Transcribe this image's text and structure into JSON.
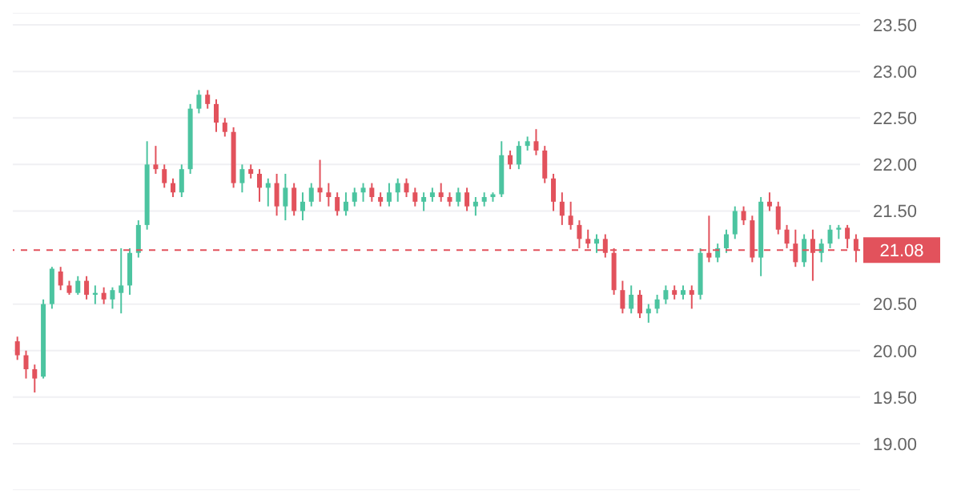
{
  "chart_data": {
    "type": "candlestick",
    "categories": [
      null,
      null,
      null,
      null,
      null,
      null,
      null,
      null,
      null,
      null,
      null,
      null,
      null,
      null,
      null,
      null,
      null,
      null,
      null,
      null,
      null,
      null,
      null,
      null,
      null,
      null,
      null,
      null,
      null,
      null,
      null,
      null,
      null,
      null,
      null,
      null,
      null,
      null,
      null,
      null,
      null,
      null,
      null,
      null,
      null,
      null,
      null,
      null,
      null,
      null,
      null,
      null,
      null,
      null,
      null,
      null,
      null,
      null,
      null,
      null,
      null,
      null,
      null,
      null,
      null,
      null,
      null,
      null,
      null,
      null,
      null,
      null,
      null,
      null,
      null,
      null,
      null,
      null,
      null,
      null,
      null,
      null,
      null,
      null,
      null,
      null,
      null,
      null,
      null,
      null,
      null,
      null,
      null,
      null,
      null,
      null,
      null,
      null
    ],
    "ohlc": [
      [
        20.1,
        20.15,
        19.9,
        19.95
      ],
      [
        19.95,
        20.0,
        19.7,
        19.8
      ],
      [
        19.8,
        19.85,
        19.55,
        19.7
      ],
      [
        19.72,
        20.55,
        19.7,
        20.5
      ],
      [
        20.5,
        20.9,
        20.45,
        20.88
      ],
      [
        20.85,
        20.9,
        20.65,
        20.7
      ],
      [
        20.7,
        20.75,
        20.6,
        20.62
      ],
      [
        20.62,
        20.8,
        20.6,
        20.75
      ],
      [
        20.75,
        20.8,
        20.55,
        20.6
      ],
      [
        20.6,
        20.7,
        20.5,
        20.62
      ],
      [
        20.62,
        20.68,
        20.5,
        20.55
      ],
      [
        20.55,
        20.68,
        20.45,
        20.65
      ],
      [
        20.62,
        21.1,
        20.4,
        20.7
      ],
      [
        20.7,
        21.1,
        20.6,
        21.05
      ],
      [
        21.05,
        21.4,
        21.0,
        21.35
      ],
      [
        21.35,
        22.25,
        21.3,
        22.0
      ],
      [
        22.0,
        22.2,
        21.9,
        21.95
      ],
      [
        21.95,
        22.0,
        21.75,
        21.8
      ],
      [
        21.8,
        21.85,
        21.65,
        21.7
      ],
      [
        21.7,
        22.0,
        21.65,
        21.95
      ],
      [
        21.95,
        22.65,
        21.9,
        22.6
      ],
      [
        22.6,
        22.8,
        22.55,
        22.75
      ],
      [
        22.75,
        22.8,
        22.6,
        22.65
      ],
      [
        22.65,
        22.7,
        22.35,
        22.45
      ],
      [
        22.45,
        22.5,
        22.3,
        22.35
      ],
      [
        22.35,
        22.4,
        21.75,
        21.8
      ],
      [
        21.8,
        22.0,
        21.7,
        21.95
      ],
      [
        21.95,
        22.0,
        21.85,
        21.9
      ],
      [
        21.9,
        21.95,
        21.6,
        21.75
      ],
      [
        21.75,
        21.85,
        21.55,
        21.8
      ],
      [
        21.8,
        21.9,
        21.45,
        21.55
      ],
      [
        21.55,
        21.9,
        21.4,
        21.75
      ],
      [
        21.75,
        21.8,
        21.45,
        21.5
      ],
      [
        21.5,
        21.7,
        21.4,
        21.6
      ],
      [
        21.6,
        21.8,
        21.55,
        21.75
      ],
      [
        21.75,
        22.05,
        21.6,
        21.7
      ],
      [
        21.7,
        21.8,
        21.55,
        21.65
      ],
      [
        21.65,
        21.7,
        21.45,
        21.5
      ],
      [
        21.5,
        21.7,
        21.45,
        21.6
      ],
      [
        21.6,
        21.75,
        21.55,
        21.7
      ],
      [
        21.7,
        21.8,
        21.6,
        21.75
      ],
      [
        21.75,
        21.8,
        21.6,
        21.65
      ],
      [
        21.65,
        21.7,
        21.55,
        21.6
      ],
      [
        21.6,
        21.8,
        21.55,
        21.7
      ],
      [
        21.7,
        21.85,
        21.6,
        21.8
      ],
      [
        21.8,
        21.85,
        21.65,
        21.7
      ],
      [
        21.7,
        21.75,
        21.55,
        21.6
      ],
      [
        21.6,
        21.7,
        21.5,
        21.65
      ],
      [
        21.65,
        21.75,
        21.6,
        21.7
      ],
      [
        21.7,
        21.8,
        21.6,
        21.65
      ],
      [
        21.65,
        21.7,
        21.55,
        21.6
      ],
      [
        21.6,
        21.75,
        21.55,
        21.7
      ],
      [
        21.7,
        21.75,
        21.5,
        21.55
      ],
      [
        21.55,
        21.65,
        21.45,
        21.6
      ],
      [
        21.6,
        21.7,
        21.55,
        21.65
      ],
      [
        21.65,
        21.7,
        21.6,
        21.68
      ],
      [
        21.68,
        22.25,
        21.65,
        22.1
      ],
      [
        22.1,
        22.15,
        21.95,
        22.0
      ],
      [
        22.0,
        22.25,
        21.95,
        22.2
      ],
      [
        22.2,
        22.3,
        22.15,
        22.25
      ],
      [
        22.25,
        22.38,
        22.1,
        22.15
      ],
      [
        22.15,
        22.2,
        21.8,
        21.85
      ],
      [
        21.85,
        21.9,
        21.5,
        21.6
      ],
      [
        21.6,
        21.7,
        21.35,
        21.45
      ],
      [
        21.45,
        21.6,
        21.3,
        21.35
      ],
      [
        21.35,
        21.4,
        21.1,
        21.2
      ],
      [
        21.2,
        21.3,
        21.1,
        21.15
      ],
      [
        21.15,
        21.25,
        21.05,
        21.2
      ],
      [
        21.2,
        21.25,
        21.0,
        21.05
      ],
      [
        21.05,
        21.1,
        20.6,
        20.65
      ],
      [
        20.65,
        20.75,
        20.4,
        20.45
      ],
      [
        20.45,
        20.7,
        20.4,
        20.6
      ],
      [
        20.6,
        20.65,
        20.35,
        20.4
      ],
      [
        20.4,
        20.5,
        20.3,
        20.45
      ],
      [
        20.45,
        20.6,
        20.4,
        20.55
      ],
      [
        20.55,
        20.7,
        20.5,
        20.65
      ],
      [
        20.65,
        20.7,
        20.55,
        20.6
      ],
      [
        20.6,
        20.7,
        20.55,
        20.65
      ],
      [
        20.65,
        20.7,
        20.45,
        20.6
      ],
      [
        20.6,
        21.1,
        20.55,
        21.05
      ],
      [
        21.05,
        21.45,
        20.95,
        21.0
      ],
      [
        21.0,
        21.15,
        20.95,
        21.1
      ],
      [
        21.1,
        21.3,
        21.05,
        21.25
      ],
      [
        21.25,
        21.55,
        21.2,
        21.5
      ],
      [
        21.5,
        21.55,
        21.35,
        21.4
      ],
      [
        21.4,
        21.45,
        20.95,
        21.0
      ],
      [
        21.0,
        21.65,
        20.8,
        21.6
      ],
      [
        21.6,
        21.7,
        21.5,
        21.55
      ],
      [
        21.55,
        21.6,
        21.25,
        21.3
      ],
      [
        21.3,
        21.35,
        21.1,
        21.15
      ],
      [
        21.15,
        21.3,
        20.9,
        20.95
      ],
      [
        20.95,
        21.25,
        20.9,
        21.2
      ],
      [
        21.2,
        21.3,
        20.75,
        21.05
      ],
      [
        21.05,
        21.2,
        20.95,
        21.15
      ],
      [
        21.15,
        21.35,
        21.1,
        21.3
      ],
      [
        21.3,
        21.35,
        21.2,
        21.32
      ],
      [
        21.32,
        21.35,
        21.1,
        21.2
      ],
      [
        21.2,
        21.25,
        20.95,
        21.08
      ]
    ],
    "colors": [
      "#e2525c",
      "#e2525c",
      "#e2525c",
      "#4cc4a0",
      "#4cc4a0",
      "#e2525c",
      "#e2525c",
      "#4cc4a0",
      "#e2525c",
      "#4cc4a0",
      "#e2525c",
      "#4cc4a0",
      "#4cc4a0",
      "#4cc4a0",
      "#4cc4a0",
      "#4cc4a0",
      "#e2525c",
      "#e2525c",
      "#e2525c",
      "#4cc4a0",
      "#4cc4a0",
      "#4cc4a0",
      "#e2525c",
      "#e2525c",
      "#e2525c",
      "#e2525c",
      "#4cc4a0",
      "#e2525c",
      "#e2525c",
      "#4cc4a0",
      "#e2525c",
      "#4cc4a0",
      "#e2525c",
      "#4cc4a0",
      "#4cc4a0",
      "#e2525c",
      "#e2525c",
      "#e2525c",
      "#4cc4a0",
      "#4cc4a0",
      "#4cc4a0",
      "#e2525c",
      "#e2525c",
      "#4cc4a0",
      "#4cc4a0",
      "#e2525c",
      "#e2525c",
      "#4cc4a0",
      "#4cc4a0",
      "#e2525c",
      "#e2525c",
      "#4cc4a0",
      "#e2525c",
      "#4cc4a0",
      "#4cc4a0",
      "#4cc4a0",
      "#4cc4a0",
      "#e2525c",
      "#4cc4a0",
      "#4cc4a0",
      "#e2525c",
      "#e2525c",
      "#e2525c",
      "#e2525c",
      "#e2525c",
      "#e2525c",
      "#e2525c",
      "#4cc4a0",
      "#e2525c",
      "#e2525c",
      "#e2525c",
      "#4cc4a0",
      "#e2525c",
      "#4cc4a0",
      "#4cc4a0",
      "#4cc4a0",
      "#e2525c",
      "#4cc4a0",
      "#e2525c",
      "#4cc4a0",
      "#e2525c",
      "#4cc4a0",
      "#4cc4a0",
      "#4cc4a0",
      "#e2525c",
      "#e2525c",
      "#4cc4a0",
      "#e2525c",
      "#e2525c",
      "#e2525c",
      "#e2525c",
      "#4cc4a0",
      "#e2525c",
      "#4cc4a0",
      "#4cc4a0",
      "#4cc4a0",
      "#e2525c",
      "#e2525c"
    ],
    "ylim": [
      18.5,
      23.63
    ],
    "yticks": [
      {
        "value": 19,
        "label": "19.00"
      },
      {
        "value": 19.5,
        "label": "19.50"
      },
      {
        "value": 20,
        "label": "20.00"
      },
      {
        "value": 20.5,
        "label": "20.50"
      },
      {
        "value": 21.5,
        "label": "21.50"
      },
      {
        "value": 22,
        "label": "22.00"
      },
      {
        "value": 22.5,
        "label": "22.50"
      },
      {
        "value": 23,
        "label": "23.00"
      },
      {
        "value": 23.5,
        "label": "23.50"
      }
    ],
    "ref_lines": [
      {
        "axis": "y",
        "value": 21.08,
        "label": "21.08",
        "color": "#e2525c",
        "line_style": "dashed"
      }
    ],
    "grid": "y",
    "tick_labels": "y"
  }
}
